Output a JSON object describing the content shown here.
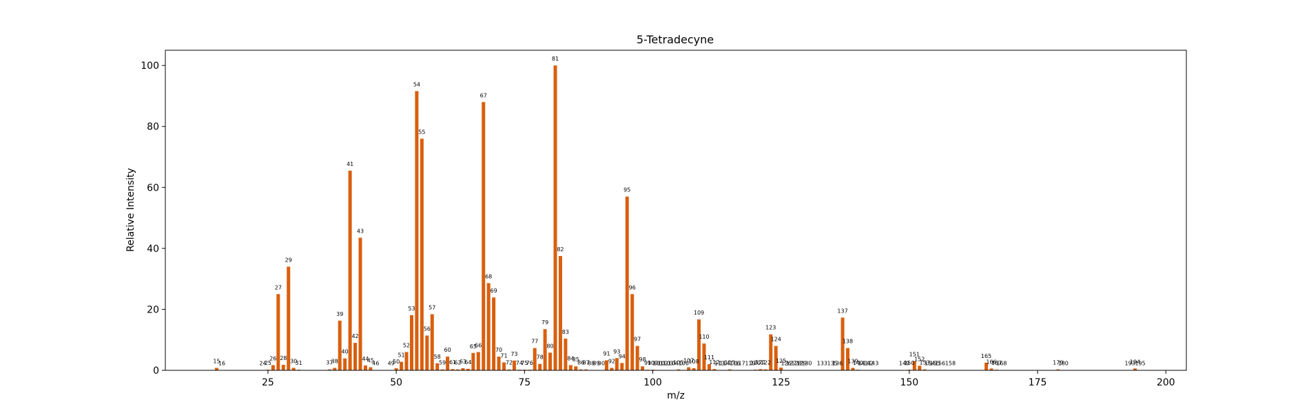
{
  "chart_data": {
    "type": "bar",
    "title": "5-Tetradecyne",
    "xlabel": "m/z",
    "ylabel": "Relative Intensity",
    "xlim": [
      5,
      204
    ],
    "ylim": [
      0,
      105
    ],
    "xticks": [
      25,
      50,
      75,
      100,
      125,
      150,
      175,
      200
    ],
    "yticks": [
      0,
      20,
      40,
      60,
      80,
      100
    ],
    "bar_color": "#d95f0e",
    "grid": false,
    "legend": "none",
    "peaks": [
      {
        "mz": 15,
        "intensity": 0.8
      },
      {
        "mz": 16,
        "intensity": 0.1
      },
      {
        "mz": 24,
        "intensity": 0.1
      },
      {
        "mz": 25,
        "intensity": 0.2
      },
      {
        "mz": 26,
        "intensity": 1.7
      },
      {
        "mz": 27,
        "intensity": 25.0
      },
      {
        "mz": 28,
        "intensity": 1.8
      },
      {
        "mz": 29,
        "intensity": 34.0
      },
      {
        "mz": 30,
        "intensity": 0.8
      },
      {
        "mz": 31,
        "intensity": 0.2
      },
      {
        "mz": 37,
        "intensity": 0.3
      },
      {
        "mz": 38,
        "intensity": 0.8
      },
      {
        "mz": 39,
        "intensity": 16.3
      },
      {
        "mz": 40,
        "intensity": 3.9
      },
      {
        "mz": 41,
        "intensity": 65.5
      },
      {
        "mz": 42,
        "intensity": 9.0
      },
      {
        "mz": 43,
        "intensity": 43.5
      },
      {
        "mz": 44,
        "intensity": 1.6
      },
      {
        "mz": 45,
        "intensity": 1.0
      },
      {
        "mz": 46,
        "intensity": 0.1
      },
      {
        "mz": 49,
        "intensity": 0.1
      },
      {
        "mz": 50,
        "intensity": 0.7
      },
      {
        "mz": 51,
        "intensity": 2.8
      },
      {
        "mz": 52,
        "intensity": 6.0
      },
      {
        "mz": 53,
        "intensity": 18.1
      },
      {
        "mz": 54,
        "intensity": 91.6
      },
      {
        "mz": 55,
        "intensity": 76.0
      },
      {
        "mz": 56,
        "intensity": 11.4
      },
      {
        "mz": 57,
        "intensity": 18.4
      },
      {
        "mz": 58,
        "intensity": 2.3
      },
      {
        "mz": 59,
        "intensity": 0.3
      },
      {
        "mz": 60,
        "intensity": 4.5
      },
      {
        "mz": 61,
        "intensity": 0.4
      },
      {
        "mz": 62,
        "intensity": 0.3
      },
      {
        "mz": 63,
        "intensity": 0.7
      },
      {
        "mz": 64,
        "intensity": 0.5
      },
      {
        "mz": 65,
        "intensity": 5.7
      },
      {
        "mz": 66,
        "intensity": 6.0
      },
      {
        "mz": 67,
        "intensity": 88.0
      },
      {
        "mz": 68,
        "intensity": 28.6
      },
      {
        "mz": 69,
        "intensity": 23.9
      },
      {
        "mz": 70,
        "intensity": 4.5
      },
      {
        "mz": 71,
        "intensity": 2.6
      },
      {
        "mz": 72,
        "intensity": 0.3
      },
      {
        "mz": 73,
        "intensity": 3.2
      },
      {
        "mz": 74,
        "intensity": 0.2
      },
      {
        "mz": 75,
        "intensity": 0.2
      },
      {
        "mz": 76,
        "intensity": 0.2
      },
      {
        "mz": 77,
        "intensity": 7.3
      },
      {
        "mz": 78,
        "intensity": 2.1
      },
      {
        "mz": 79,
        "intensity": 13.5
      },
      {
        "mz": 80,
        "intensity": 5.8
      },
      {
        "mz": 81,
        "intensity": 100.0
      },
      {
        "mz": 82,
        "intensity": 37.5
      },
      {
        "mz": 83,
        "intensity": 10.4
      },
      {
        "mz": 84,
        "intensity": 1.7
      },
      {
        "mz": 85,
        "intensity": 1.3
      },
      {
        "mz": 86,
        "intensity": 0.3
      },
      {
        "mz": 87,
        "intensity": 0.3
      },
      {
        "mz": 88,
        "intensity": 0.1
      },
      {
        "mz": 89,
        "intensity": 0.1
      },
      {
        "mz": 90,
        "intensity": 0.1
      },
      {
        "mz": 91,
        "intensity": 3.3
      },
      {
        "mz": 92,
        "intensity": 0.8
      },
      {
        "mz": 93,
        "intensity": 4.0
      },
      {
        "mz": 94,
        "intensity": 2.4
      },
      {
        "mz": 95,
        "intensity": 57.0
      },
      {
        "mz": 96,
        "intensity": 25.0
      },
      {
        "mz": 97,
        "intensity": 8.0
      },
      {
        "mz": 98,
        "intensity": 1.3
      },
      {
        "mz": 99,
        "intensity": 0.2
      },
      {
        "mz": 100,
        "intensity": 0.2
      },
      {
        "mz": 101,
        "intensity": 0.1
      },
      {
        "mz": 102,
        "intensity": 0.1
      },
      {
        "mz": 103,
        "intensity": 0.1
      },
      {
        "mz": 104,
        "intensity": 0.1
      },
      {
        "mz": 105,
        "intensity": 0.3
      },
      {
        "mz": 106,
        "intensity": 0.1
      },
      {
        "mz": 107,
        "intensity": 1.0
      },
      {
        "mz": 108,
        "intensity": 0.7
      },
      {
        "mz": 109,
        "intensity": 16.7
      },
      {
        "mz": 110,
        "intensity": 8.8
      },
      {
        "mz": 111,
        "intensity": 2.0
      },
      {
        "mz": 112,
        "intensity": 0.4
      },
      {
        "mz": 113,
        "intensity": 0.1
      },
      {
        "mz": 114,
        "intensity": 0.1
      },
      {
        "mz": 115,
        "intensity": 0.3
      },
      {
        "mz": 116,
        "intensity": 0.1
      },
      {
        "mz": 117,
        "intensity": 0.1
      },
      {
        "mz": 119,
        "intensity": 0.1
      },
      {
        "mz": 120,
        "intensity": 0.2
      },
      {
        "mz": 121,
        "intensity": 0.4
      },
      {
        "mz": 122,
        "intensity": 0.3
      },
      {
        "mz": 123,
        "intensity": 11.8
      },
      {
        "mz": 124,
        "intensity": 8.0
      },
      {
        "mz": 125,
        "intensity": 0.9
      },
      {
        "mz": 126,
        "intensity": 0.1
      },
      {
        "mz": 127,
        "intensity": 0.1
      },
      {
        "mz": 128,
        "intensity": 0.1
      },
      {
        "mz": 129,
        "intensity": 0.1
      },
      {
        "mz": 130,
        "intensity": 0.1
      },
      {
        "mz": 133,
        "intensity": 0.1
      },
      {
        "mz": 135,
        "intensity": 0.1
      },
      {
        "mz": 136,
        "intensity": 0.1
      },
      {
        "mz": 137,
        "intensity": 17.3
      },
      {
        "mz": 138,
        "intensity": 7.3
      },
      {
        "mz": 139,
        "intensity": 0.8
      },
      {
        "mz": 140,
        "intensity": 0.2
      },
      {
        "mz": 141,
        "intensity": 0.1
      },
      {
        "mz": 142,
        "intensity": 0.1
      },
      {
        "mz": 143,
        "intensity": 0.1
      },
      {
        "mz": 149,
        "intensity": 0.1
      },
      {
        "mz": 150,
        "intensity": 0.2
      },
      {
        "mz": 151,
        "intensity": 3.0
      },
      {
        "mz": 152,
        "intensity": 1.5
      },
      {
        "mz": 153,
        "intensity": 0.3
      },
      {
        "mz": 154,
        "intensity": 0.1
      },
      {
        "mz": 155,
        "intensity": 0.1
      },
      {
        "mz": 156,
        "intensity": 0.1
      },
      {
        "mz": 158,
        "intensity": 0.1
      },
      {
        "mz": 165,
        "intensity": 2.5
      },
      {
        "mz": 166,
        "intensity": 0.6
      },
      {
        "mz": 167,
        "intensity": 0.2
      },
      {
        "mz": 168,
        "intensity": 0.1
      },
      {
        "mz": 179,
        "intensity": 0.3
      },
      {
        "mz": 180,
        "intensity": 0.1
      },
      {
        "mz": 193,
        "intensity": 0.1
      },
      {
        "mz": 194,
        "intensity": 0.6
      },
      {
        "mz": 195,
        "intensity": 0.1
      }
    ]
  }
}
